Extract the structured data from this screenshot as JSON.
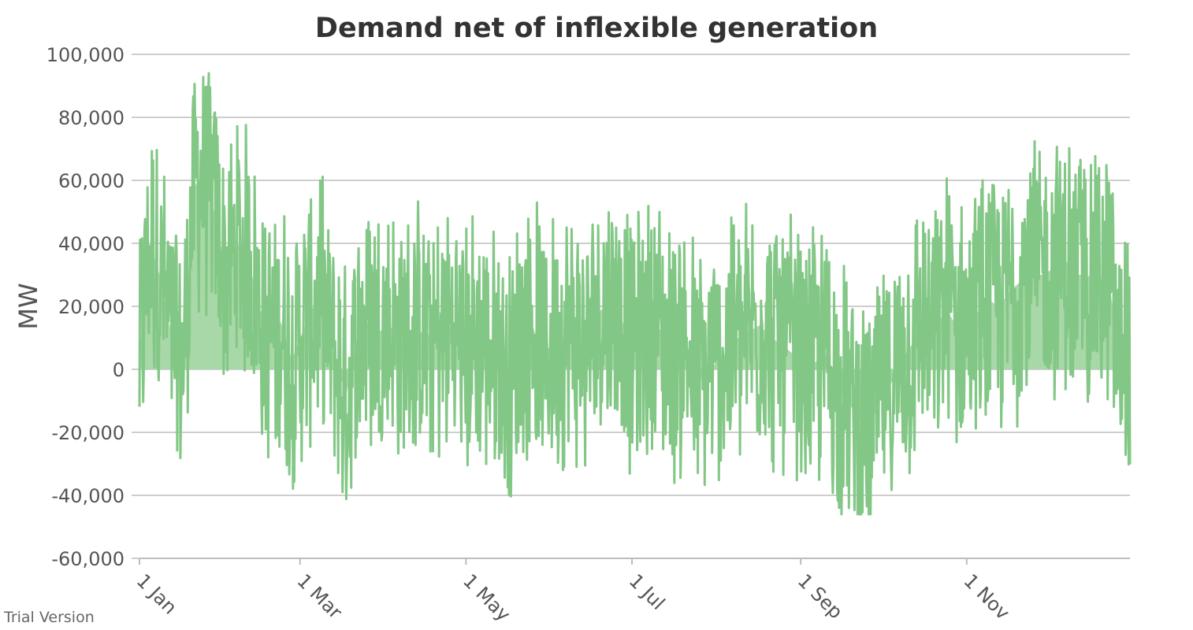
{
  "colors": {
    "series": "#82c785",
    "fill": "#a9d8a8",
    "grid": "#bdbdbd",
    "text": "#555555",
    "title": "#333333"
  },
  "watermark": "Trial Version",
  "chart_data": {
    "type": "area",
    "title": "Demand net of inflexible generation",
    "xlabel": "",
    "ylabel": "MW",
    "ylim": [
      -60000,
      100000
    ],
    "yticks": [
      -60000,
      -40000,
      -20000,
      0,
      20000,
      40000,
      60000,
      80000,
      100000
    ],
    "ytick_labels": [
      "-60,000",
      "-40,000",
      "-20,000",
      "0",
      "20,000",
      "40,000",
      "60,000",
      "80,000",
      "100,000"
    ],
    "xlim": [
      "1 Jan",
      "31 Dec"
    ],
    "xtick_labels": [
      "1 Jan",
      "1 Mar",
      "1 May",
      "1 Jul",
      "1 Sep",
      "1 Nov"
    ],
    "xtick_day_of_year": [
      1,
      60,
      121,
      182,
      244,
      305
    ],
    "grid": true,
    "legend": "none",
    "series": [
      {
        "x_day_of_year": [
          1,
          5,
          9,
          13,
          17,
          21,
          25,
          29,
          33,
          37,
          41,
          45,
          49,
          53,
          57,
          61,
          65,
          69,
          73,
          77,
          81,
          85,
          89,
          93,
          97,
          101,
          105,
          109,
          113,
          117,
          121,
          125,
          129,
          133,
          137,
          141,
          145,
          149,
          153,
          157,
          161,
          165,
          169,
          173,
          177,
          181,
          185,
          189,
          193,
          197,
          201,
          205,
          209,
          213,
          217,
          221,
          225,
          229,
          233,
          237,
          241,
          245,
          249,
          253,
          257,
          261,
          265,
          269,
          273,
          277,
          281,
          285,
          289,
          293,
          297,
          301,
          305,
          309,
          313,
          317,
          321,
          325,
          329,
          333,
          337,
          341,
          345,
          349,
          353,
          357,
          361,
          365
        ],
        "values": [
          5000,
          40000,
          28000,
          10000,
          2000,
          58000,
          62000,
          48000,
          30000,
          40000,
          35000,
          20000,
          10000,
          15000,
          3000,
          12000,
          20000,
          18000,
          2000,
          -8000,
          10000,
          15000,
          12000,
          14000,
          8000,
          10000,
          12000,
          10000,
          12000,
          14000,
          5000,
          10000,
          8000,
          6000,
          -5000,
          10000,
          15000,
          5000,
          8000,
          10000,
          12000,
          5000,
          18000,
          20000,
          18000,
          10000,
          8000,
          15000,
          12000,
          5000,
          8000,
          0,
          -5000,
          3000,
          5000,
          10000,
          12000,
          14000,
          10000,
          8000,
          5000,
          0,
          2000,
          5000,
          -5000,
          -10000,
          -15000,
          -20000,
          -10000,
          -5000,
          3000,
          8000,
          15000,
          10000,
          20000,
          14000,
          15000,
          18000,
          22000,
          20000,
          25000,
          28000,
          30000,
          30000,
          32000,
          35000,
          30000,
          30000,
          28000,
          30000,
          5000,
          8000
        ]
      }
    ]
  }
}
